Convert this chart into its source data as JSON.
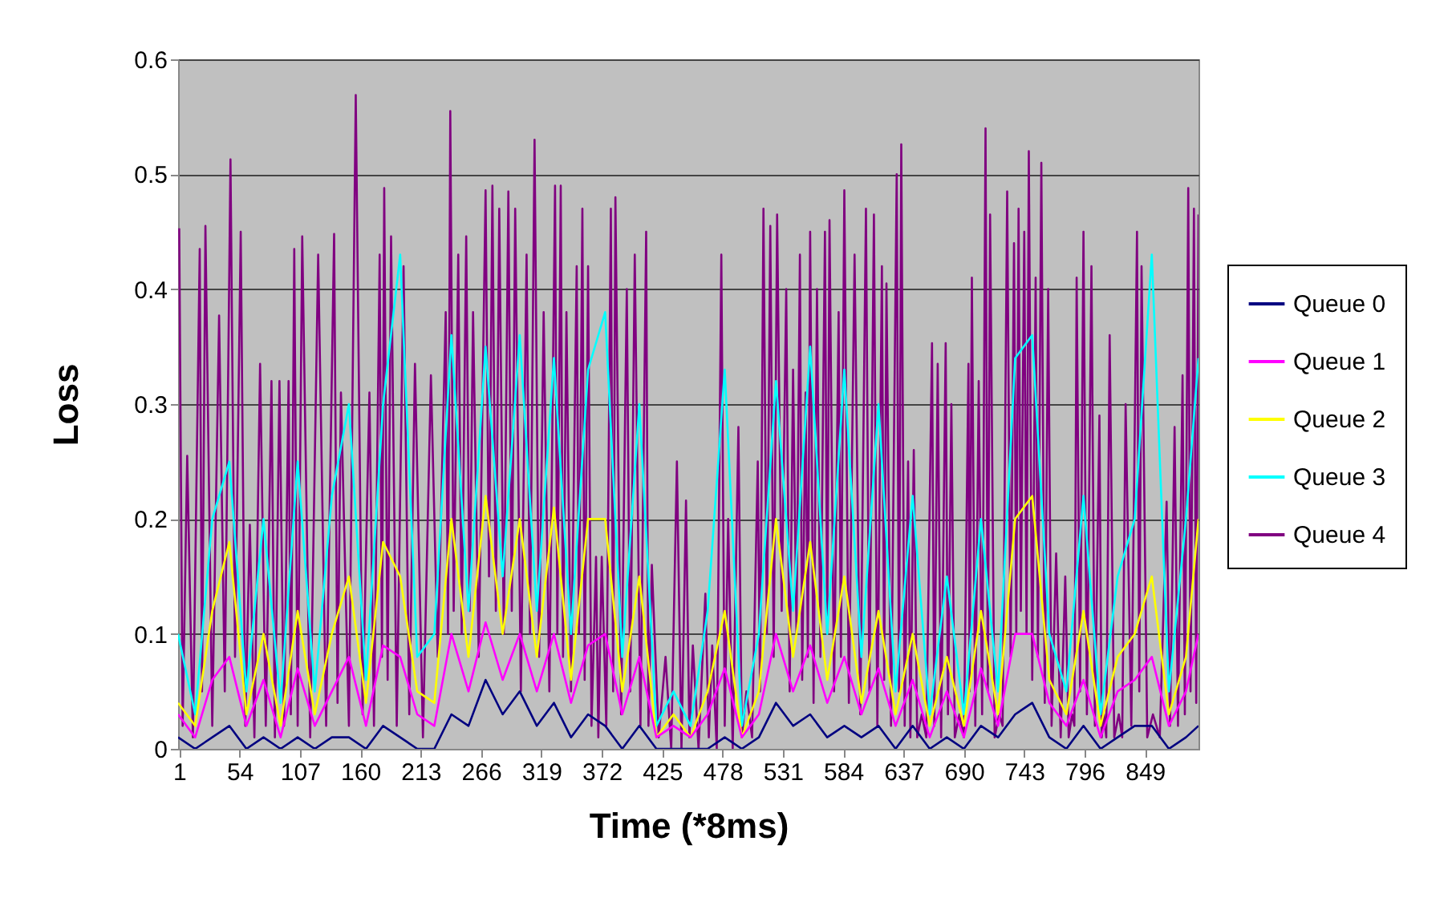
{
  "chart_data": {
    "type": "line",
    "xlabel": "Time (*8ms)",
    "ylabel": "Loss",
    "xlim": [
      0,
      896
    ],
    "xticks": [
      1,
      54,
      107,
      160,
      213,
      266,
      319,
      372,
      425,
      478,
      531,
      584,
      637,
      690,
      743,
      796,
      849
    ],
    "ylim": [
      0,
      0.6
    ],
    "yticks": [
      0,
      0.1,
      0.2,
      0.3,
      0.4,
      0.5,
      0.6
    ],
    "grid": "y",
    "legend": "right",
    "series": [
      {
        "name": "Queue 0",
        "color": "#000080",
        "x": [
          0,
          15,
          30,
          45,
          60,
          75,
          90,
          105,
          120,
          135,
          150,
          165,
          180,
          195,
          210,
          225,
          240,
          255,
          270,
          285,
          300,
          315,
          330,
          345,
          360,
          375,
          390,
          405,
          420,
          435,
          450,
          465,
          480,
          495,
          510,
          525,
          540,
          555,
          570,
          585,
          600,
          615,
          630,
          645,
          660,
          675,
          690,
          705,
          720,
          735,
          750,
          765,
          780,
          795,
          810,
          825,
          840,
          855,
          870,
          885,
          896
        ],
        "values": [
          0.01,
          0,
          0.01,
          0.02,
          0,
          0.01,
          0,
          0.01,
          0,
          0.01,
          0.01,
          0,
          0.02,
          0.01,
          0,
          0,
          0.03,
          0.02,
          0.06,
          0.03,
          0.05,
          0.02,
          0.04,
          0.01,
          0.03,
          0.02,
          0,
          0.02,
          0,
          0,
          0,
          0,
          0.01,
          0,
          0.01,
          0.04,
          0.02,
          0.03,
          0.01,
          0.02,
          0.01,
          0.02,
          0,
          0.02,
          0,
          0.01,
          0,
          0.02,
          0.01,
          0.03,
          0.04,
          0.01,
          0,
          0.02,
          0,
          0.01,
          0.02,
          0.02,
          0,
          0.01,
          0.02
        ]
      },
      {
        "name": "Queue 1",
        "color": "#ff00ff",
        "x": [
          0,
          15,
          30,
          45,
          60,
          75,
          90,
          105,
          120,
          135,
          150,
          165,
          180,
          195,
          210,
          225,
          240,
          255,
          270,
          285,
          300,
          315,
          330,
          345,
          360,
          375,
          390,
          405,
          420,
          435,
          450,
          465,
          480,
          495,
          510,
          525,
          540,
          555,
          570,
          585,
          600,
          615,
          630,
          645,
          660,
          675,
          690,
          705,
          720,
          735,
          750,
          765,
          780,
          795,
          810,
          825,
          840,
          855,
          870,
          885,
          896
        ],
        "values": [
          0.03,
          0.01,
          0.06,
          0.08,
          0.02,
          0.06,
          0.01,
          0.07,
          0.02,
          0.05,
          0.08,
          0.02,
          0.09,
          0.08,
          0.03,
          0.02,
          0.1,
          0.05,
          0.11,
          0.06,
          0.1,
          0.05,
          0.1,
          0.04,
          0.09,
          0.1,
          0.03,
          0.08,
          0.01,
          0.02,
          0.01,
          0.03,
          0.07,
          0.01,
          0.03,
          0.1,
          0.05,
          0.09,
          0.04,
          0.08,
          0.03,
          0.07,
          0.02,
          0.06,
          0.01,
          0.05,
          0.01,
          0.07,
          0.02,
          0.1,
          0.1,
          0.04,
          0.02,
          0.06,
          0.01,
          0.05,
          0.06,
          0.08,
          0.02,
          0.05,
          0.1
        ]
      },
      {
        "name": "Queue 2",
        "color": "#ffff00",
        "x": [
          0,
          15,
          30,
          45,
          60,
          75,
          90,
          105,
          120,
          135,
          150,
          165,
          180,
          195,
          210,
          225,
          240,
          255,
          270,
          285,
          300,
          315,
          330,
          345,
          360,
          375,
          390,
          405,
          420,
          435,
          450,
          465,
          480,
          495,
          510,
          525,
          540,
          555,
          570,
          585,
          600,
          615,
          630,
          645,
          660,
          675,
          690,
          705,
          720,
          735,
          750,
          765,
          780,
          795,
          810,
          825,
          840,
          855,
          870,
          885,
          896
        ],
        "values": [
          0.04,
          0.02,
          0.12,
          0.18,
          0.03,
          0.1,
          0.02,
          0.12,
          0.03,
          0.1,
          0.15,
          0.04,
          0.18,
          0.15,
          0.05,
          0.04,
          0.2,
          0.08,
          0.22,
          0.1,
          0.2,
          0.08,
          0.21,
          0.06,
          0.2,
          0.2,
          0.05,
          0.15,
          0.01,
          0.03,
          0.01,
          0.05,
          0.12,
          0.01,
          0.05,
          0.2,
          0.08,
          0.18,
          0.06,
          0.15,
          0.04,
          0.12,
          0.03,
          0.1,
          0.02,
          0.08,
          0.02,
          0.12,
          0.03,
          0.2,
          0.22,
          0.06,
          0.03,
          0.12,
          0.02,
          0.08,
          0.1,
          0.15,
          0.03,
          0.08,
          0.2
        ]
      },
      {
        "name": "Queue 3",
        "color": "#00ffff",
        "x": [
          0,
          15,
          30,
          45,
          60,
          75,
          90,
          105,
          120,
          135,
          150,
          165,
          180,
          195,
          210,
          225,
          240,
          255,
          270,
          285,
          300,
          315,
          330,
          345,
          360,
          375,
          390,
          405,
          420,
          435,
          450,
          465,
          480,
          495,
          510,
          525,
          540,
          555,
          570,
          585,
          600,
          615,
          630,
          645,
          660,
          675,
          690,
          705,
          720,
          735,
          750,
          765,
          780,
          795,
          810,
          825,
          840,
          855,
          870,
          885,
          896
        ],
        "values": [
          0.1,
          0.03,
          0.2,
          0.25,
          0.05,
          0.2,
          0.04,
          0.25,
          0.05,
          0.22,
          0.3,
          0.06,
          0.3,
          0.43,
          0.08,
          0.1,
          0.36,
          0.12,
          0.35,
          0.15,
          0.36,
          0.12,
          0.34,
          0.1,
          0.33,
          0.38,
          0.08,
          0.3,
          0.02,
          0.05,
          0.02,
          0.12,
          0.33,
          0.02,
          0.1,
          0.32,
          0.12,
          0.35,
          0.1,
          0.33,
          0.08,
          0.3,
          0.05,
          0.22,
          0.03,
          0.15,
          0.03,
          0.2,
          0.05,
          0.34,
          0.36,
          0.1,
          0.05,
          0.22,
          0.03,
          0.15,
          0.2,
          0.43,
          0.05,
          0.2,
          0.34
        ]
      },
      {
        "name": "Queue 4",
        "color": "#800080",
        "x": [
          1,
          4,
          8,
          13,
          19,
          21,
          24,
          30,
          36,
          41,
          46,
          50,
          55,
          59,
          63,
          67,
          72,
          77,
          82,
          85,
          89,
          93,
          97,
          99,
          102,
          105,
          109,
          116,
          123,
          130,
          137,
          140,
          143,
          150,
          156,
          162,
          168,
          172,
          177,
          179,
          181,
          184,
          187,
          192,
          198,
          203,
          208,
          215,
          222,
          228,
          235,
          237,
          239,
          242,
          246,
          249,
          253,
          256,
          259,
          264,
          270,
          273,
          276,
          279,
          282,
          286,
          290,
          293,
          296,
          301,
          306,
          309,
          313,
          317,
          321,
          326,
          331,
          333,
          336,
          338,
          341,
          345,
          350,
          352,
          355,
          357,
          360,
          363,
          367,
          369,
          372,
          376,
          380,
          382,
          384,
          389,
          394,
          397,
          401,
          406,
          411,
          413,
          416,
          422,
          428,
          433,
          438,
          442,
          446,
          449,
          452,
          457,
          463,
          466,
          469,
          473,
          477,
          480,
          483,
          487,
          492,
          495,
          499,
          504,
          509,
          511,
          514,
          517,
          520,
          523,
          526,
          530,
          534,
          537,
          540,
          543,
          546,
          548,
          551,
          553,
          555,
          558,
          561,
          564,
          568,
          570,
          572,
          576,
          580,
          582,
          585,
          589,
          594,
          599,
          604,
          607,
          611,
          614,
          618,
          620,
          622,
          626,
          631,
          633,
          635,
          638,
          641,
          643,
          646,
          649,
          653,
          657,
          662,
          664,
          667,
          670,
          674,
          676,
          679,
          682,
          686,
          690,
          694,
          695,
          697,
          700,
          703,
          706,
          709,
          711,
          713,
          717,
          721,
          724,
          728,
          731,
          734,
          736,
          738,
          740,
          743,
          745,
          747,
          750,
          753,
          755,
          758,
          761,
          764,
          767,
          771,
          775,
          779,
          782,
          785,
          787,
          789,
          792,
          795,
          798,
          802,
          805,
          809,
          811,
          813,
          815,
          818,
          822,
          826,
          829,
          832,
          837,
          842,
          844,
          846,
          851,
          856,
          862,
          868,
          871,
          875,
          878,
          882,
          884,
          887,
          889,
          892,
          894,
          896
        ],
        "values": [
          0.453,
          0.02,
          0.255,
          0.01,
          0.435,
          0.05,
          0.455,
          0.02,
          0.377,
          0.05,
          0.513,
          0.08,
          0.45,
          0.02,
          0.195,
          0.01,
          0.335,
          0.02,
          0.32,
          0.01,
          0.32,
          0.02,
          0.32,
          0.03,
          0.435,
          0.02,
          0.446,
          0.01,
          0.43,
          0.02,
          0.448,
          0.04,
          0.31,
          0.02,
          0.569,
          0.03,
          0.31,
          0.02,
          0.43,
          0.08,
          0.488,
          0.06,
          0.446,
          0.02,
          0.42,
          0.03,
          0.335,
          0.01,
          0.325,
          0.08,
          0.38,
          0.1,
          0.555,
          0.12,
          0.43,
          0.1,
          0.446,
          0.12,
          0.38,
          0.08,
          0.486,
          0.15,
          0.49,
          0.12,
          0.47,
          0.1,
          0.485,
          0.12,
          0.47,
          0.05,
          0.43,
          0.1,
          0.53,
          0.08,
          0.38,
          0.05,
          0.49,
          0.1,
          0.49,
          0.08,
          0.38,
          0.05,
          0.42,
          0.1,
          0.47,
          0.06,
          0.42,
          0.02,
          0.167,
          0.01,
          0.167,
          0.02,
          0.47,
          0.05,
          0.48,
          0.03,
          0.4,
          0.05,
          0.43,
          0.02,
          0.45,
          0.02,
          0.16,
          0.01,
          0.08,
          0,
          0.25,
          0,
          0.216,
          0.01,
          0.09,
          0,
          0.135,
          0.01,
          0.09,
          0,
          0.43,
          0.02,
          0.2,
          0,
          0.28,
          0.01,
          0.05,
          0.01,
          0.25,
          0.05,
          0.47,
          0.1,
          0.455,
          0.08,
          0.465,
          0.12,
          0.4,
          0.05,
          0.33,
          0.1,
          0.43,
          0.06,
          0.31,
          0.08,
          0.45,
          0.04,
          0.4,
          0.08,
          0.45,
          0.1,
          0.46,
          0.05,
          0.38,
          0.08,
          0.486,
          0.04,
          0.43,
          0.03,
          0.47,
          0.05,
          0.465,
          0.02,
          0.42,
          0.06,
          0.405,
          0.02,
          0.5,
          0.05,
          0.526,
          0.02,
          0.25,
          0.01,
          0.26,
          0.01,
          0.03,
          0.01,
          0.353,
          0.02,
          0.335,
          0.01,
          0.353,
          0.03,
          0.3,
          0.01,
          0.03,
          0.01,
          0.335,
          0.05,
          0.41,
          0.02,
          0.32,
          0.03,
          0.54,
          0.05,
          0.465,
          0.01,
          0.03,
          0.02,
          0.485,
          0.08,
          0.44,
          0.1,
          0.47,
          0.12,
          0.45,
          0.1,
          0.52,
          0.06,
          0.41,
          0.08,
          0.51,
          0.04,
          0.4,
          0.02,
          0.17,
          0.01,
          0.15,
          0.01,
          0.03,
          0.02,
          0.41,
          0.05,
          0.45,
          0.03,
          0.42,
          0.02,
          0.29,
          0.01,
          0.03,
          0.01,
          0.36,
          0.01,
          0.03,
          0.01,
          0.3,
          0.02,
          0.45,
          0.05,
          0.42,
          0.01,
          0.03,
          0.01,
          0.215,
          0.02,
          0.28,
          0.02,
          0.325,
          0.03,
          0.488,
          0.05,
          0.47,
          0.04,
          0.465
        ]
      }
    ]
  }
}
